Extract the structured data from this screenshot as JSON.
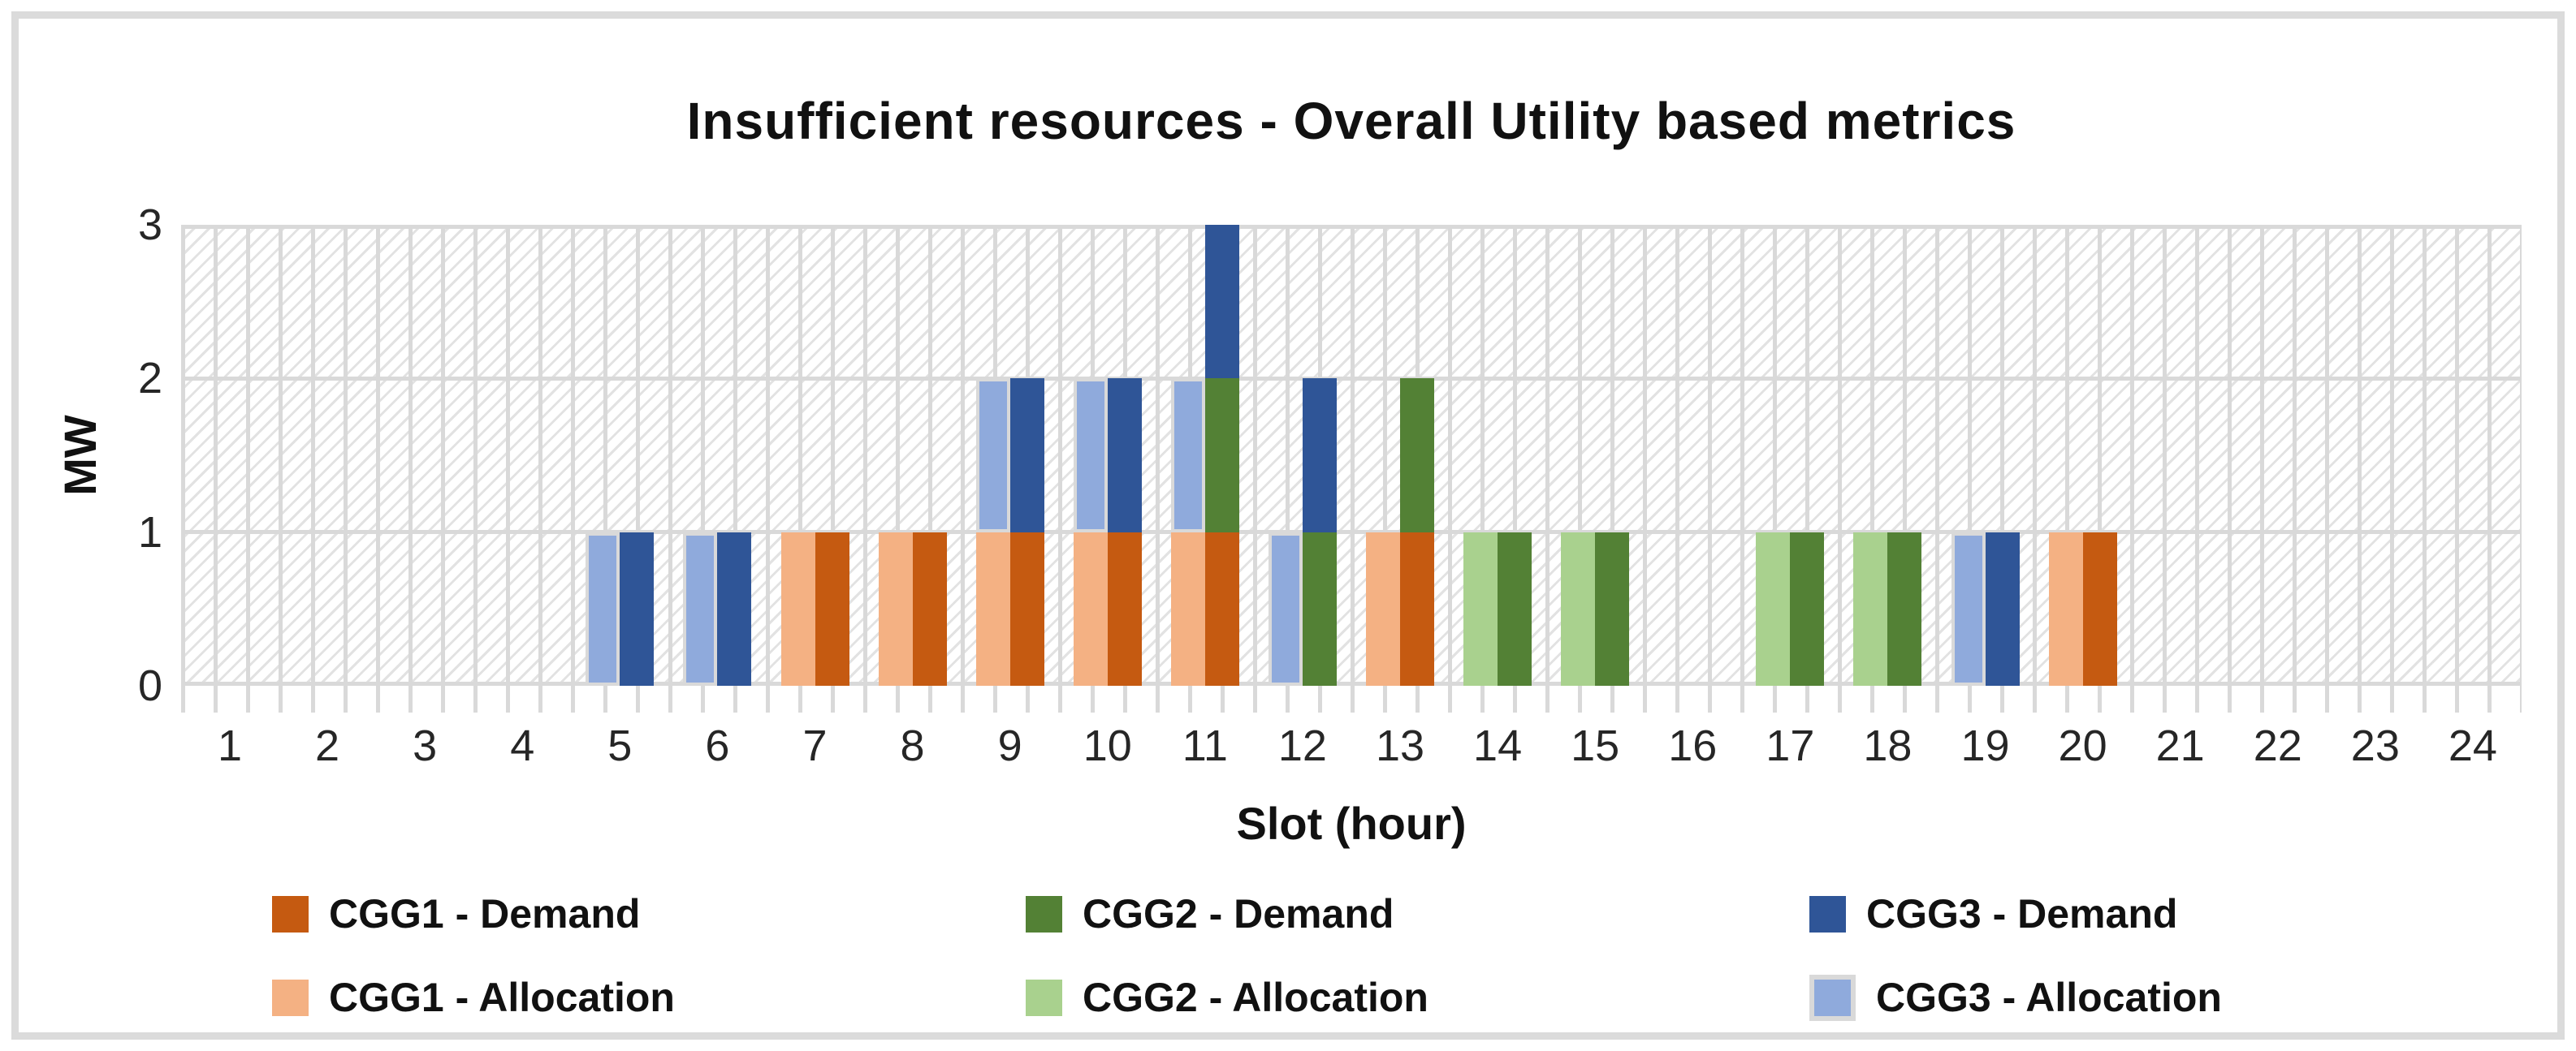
{
  "chart_data": {
    "type": "bar",
    "title": "Insufficient resources - Overall Utility based metrics",
    "xlabel": "Slot (hour)",
    "ylabel": "MW",
    "ylim": [
      0,
      3
    ],
    "yticks": [
      0,
      1,
      2,
      3
    ],
    "grid": "horizontal-major",
    "plot_background": "diagonal-hatch-with-vertical-stripes",
    "bar_layout": "two stacked columns per slot: Allocation stack (left), Demand stack (right); stack order bottom-to-top CGG1, CGG2, CGG3",
    "categories": [
      1,
      2,
      3,
      4,
      5,
      6,
      7,
      8,
      9,
      10,
      11,
      12,
      13,
      14,
      15,
      16,
      17,
      18,
      19,
      20,
      21,
      22,
      23,
      24
    ],
    "series": [
      {
        "name": "CGG1 - Demand",
        "group": "demand",
        "color": "#C55A11",
        "values": [
          0,
          0,
          0,
          0,
          0,
          0,
          1,
          1,
          1,
          1,
          1,
          0,
          1,
          0,
          0,
          0,
          0,
          0,
          0,
          1,
          0,
          0,
          0,
          0
        ]
      },
      {
        "name": "CGG2 - Demand",
        "group": "demand",
        "color": "#538135",
        "values": [
          0,
          0,
          0,
          0,
          0,
          0,
          0,
          0,
          0,
          0,
          1,
          1,
          1,
          1,
          1,
          0,
          1,
          1,
          0,
          0,
          0,
          0,
          0,
          0
        ]
      },
      {
        "name": "CGG3 - Demand",
        "group": "demand",
        "color": "#2F5597",
        "values": [
          0,
          0,
          0,
          0,
          1,
          1,
          0,
          0,
          1,
          1,
          1,
          1,
          0,
          0,
          0,
          0,
          0,
          0,
          1,
          0,
          0,
          0,
          0,
          0
        ]
      },
      {
        "name": "CGG1 - Allocation",
        "group": "allocation",
        "color": "#F4B183",
        "values": [
          0,
          0,
          0,
          0,
          0,
          0,
          1,
          1,
          1,
          1,
          1,
          0,
          1,
          0,
          0,
          0,
          0,
          0,
          0,
          1,
          0,
          0,
          0,
          0
        ]
      },
      {
        "name": "CGG2 - Allocation",
        "group": "allocation",
        "color": "#A9D18E",
        "values": [
          0,
          0,
          0,
          0,
          0,
          0,
          0,
          0,
          0,
          0,
          0,
          0,
          0,
          1,
          1,
          0,
          1,
          1,
          0,
          0,
          0,
          0,
          0,
          0
        ]
      },
      {
        "name": "CGG3 - Allocation",
        "group": "allocation",
        "color": "#8FAADC",
        "border": "#D9D9D9",
        "values": [
          0,
          0,
          0,
          0,
          1,
          1,
          0,
          0,
          1,
          1,
          1,
          1,
          0,
          0,
          0,
          0,
          0,
          0,
          1,
          0,
          0,
          0,
          0,
          0
        ]
      }
    ],
    "legend": {
      "position": "bottom",
      "rows": [
        [
          "CGG1 - Demand",
          "CGG2 - Demand",
          "CGG3 - Demand"
        ],
        [
          "CGG1 - Allocation",
          "CGG2 - Allocation",
          "CGG3 - Allocation"
        ]
      ]
    },
    "colors_note": {
      "gridline": "#D9D9D9",
      "hatch": "#E2E2E2",
      "frame_border": "#DBDBDB"
    }
  }
}
